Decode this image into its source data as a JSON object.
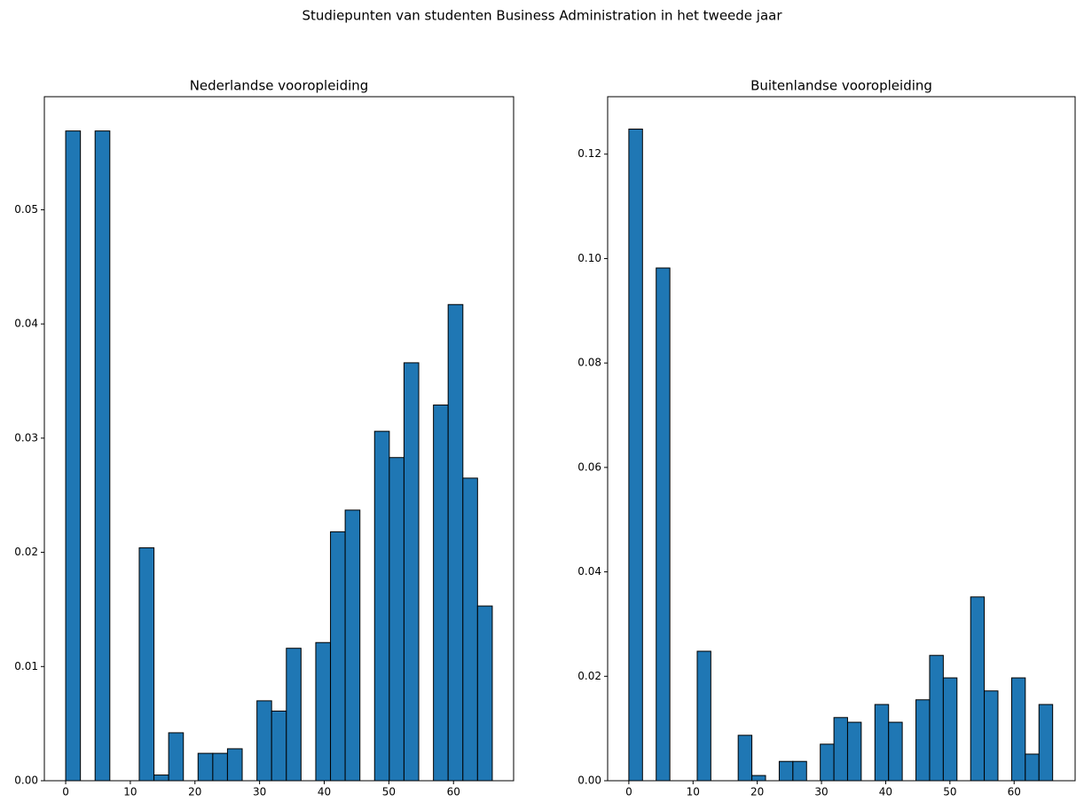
{
  "chart_data": [
    {
      "type": "histogram",
      "suptitle": "Studiepunten van studenten Business Administration in het tweede jaar",
      "title": "Nederlandse vooropleiding",
      "color": "#1f77b4",
      "edgecolor": "#000000",
      "bins": [
        0,
        2.28,
        4.55,
        6.83,
        9.1,
        11.38,
        13.66,
        15.93,
        18.21,
        20.48,
        22.76,
        25.03,
        27.31,
        29.59,
        31.86,
        34.14,
        36.41,
        38.69,
        40.97,
        43.24,
        45.52,
        47.79,
        50.07,
        52.34,
        54.62,
        56.9,
        59.17,
        61.45,
        63.72,
        66
      ],
      "values": [
        0.0569,
        0,
        0.0569,
        0,
        0,
        0.0204,
        0.0005,
        0.0042,
        0,
        0.0024,
        0.0024,
        0.0028,
        0,
        0.007,
        0.0061,
        0.0116,
        0,
        0.0121,
        0.0218,
        0.0237,
        0,
        0.0306,
        0.0283,
        0.0366,
        0,
        0.0329,
        0.0417,
        0.0265,
        0.0153
      ],
      "xlim": [
        -3.3,
        69.3
      ],
      "xticks": [
        0,
        10,
        20,
        30,
        40,
        50,
        60
      ],
      "ylim": [
        0,
        0.0599
      ],
      "yticks": [
        {
          "value": 0,
          "label": "0.00"
        },
        {
          "value": 0.01,
          "label": "0.01"
        },
        {
          "value": 0.02,
          "label": "0.02"
        },
        {
          "value": 0.03,
          "label": "0.03"
        },
        {
          "value": 0.04,
          "label": "0.04"
        },
        {
          "value": 0.05,
          "label": "0.05"
        }
      ]
    },
    {
      "type": "histogram",
      "title": "Buitenlandse vooropleiding",
      "color": "#1f77b4",
      "edgecolor": "#000000",
      "bins": [
        0,
        2.13,
        4.26,
        6.39,
        8.52,
        10.65,
        12.77,
        14.9,
        17.03,
        19.16,
        21.29,
        23.42,
        25.55,
        27.68,
        29.81,
        31.94,
        34.06,
        36.19,
        38.32,
        40.45,
        42.58,
        44.71,
        46.84,
        48.97,
        51.1,
        53.23,
        55.35,
        57.48,
        59.61,
        61.74,
        63.87,
        66
      ],
      "values": [
        0.1248,
        0,
        0.0982,
        0,
        0,
        0.0248,
        0,
        0,
        0.0087,
        0.001,
        0,
        0.0037,
        0.0037,
        0,
        0.007,
        0.0121,
        0.0112,
        0,
        0.0146,
        0.0112,
        0,
        0.0155,
        0.024,
        0.0197,
        0,
        0.0352,
        0.0172,
        0,
        0.0197,
        0.0051,
        0.0146
      ],
      "xlim": [
        -3.3,
        69.5
      ],
      "xticks": [
        0,
        10,
        20,
        30,
        40,
        50,
        60
      ],
      "ylim": [
        0,
        0.131
      ],
      "yticks": [
        {
          "value": 0,
          "label": "0.00"
        },
        {
          "value": 0.02,
          "label": "0.02"
        },
        {
          "value": 0.04,
          "label": "0.04"
        },
        {
          "value": 0.06,
          "label": "0.06"
        },
        {
          "value": 0.08,
          "label": "0.08"
        },
        {
          "value": 0.1,
          "label": "0.10"
        },
        {
          "value": 0.12,
          "label": "0.12"
        }
      ]
    }
  ]
}
